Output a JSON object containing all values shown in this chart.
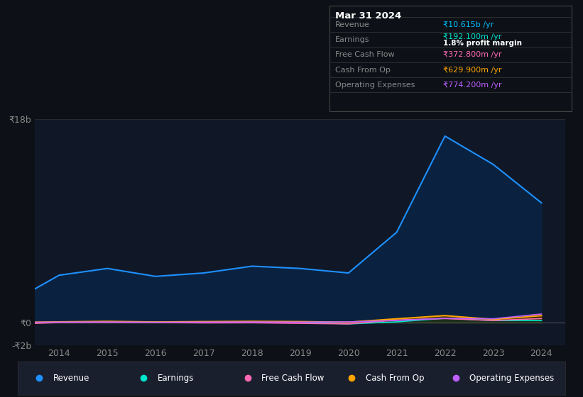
{
  "bg_color": "#0d1117",
  "ylim": [
    -2000000000,
    18000000000
  ],
  "revenue_color": "#1e90ff",
  "earnings_color": "#00e5cc",
  "fcf_color": "#ff69b4",
  "cashop_color": "#ffa500",
  "opex_color": "#bf5fff",
  "legend_items": [
    {
      "label": "Revenue",
      "color": "#1e90ff"
    },
    {
      "label": "Earnings",
      "color": "#00e5cc"
    },
    {
      "label": "Free Cash Flow",
      "color": "#ff69b4"
    },
    {
      "label": "Cash From Op",
      "color": "#ffa500"
    },
    {
      "label": "Operating Expenses",
      "color": "#bf5fff"
    }
  ],
  "revenue": [
    3000000000,
    4200000000,
    4800000000,
    4100000000,
    4400000000,
    5000000000,
    4800000000,
    4400000000,
    8000000000,
    16500000000,
    14000000000,
    10600000000
  ],
  "earnings": [
    20000000,
    50000000,
    80000000,
    40000000,
    60000000,
    60000000,
    40000000,
    -100000000,
    80000000,
    400000000,
    200000000,
    192000000
  ],
  "fcf": [
    -50000000,
    20000000,
    30000000,
    20000000,
    -10000000,
    0,
    -50000000,
    -100000000,
    250000000,
    370000000,
    200000000,
    373000000
  ],
  "cashop": [
    50000000,
    80000000,
    120000000,
    70000000,
    100000000,
    120000000,
    100000000,
    50000000,
    350000000,
    630000000,
    300000000,
    630000000
  ],
  "opex": [
    50000000,
    60000000,
    70000000,
    50000000,
    60000000,
    70000000,
    60000000,
    80000000,
    200000000,
    400000000,
    350000000,
    774000000
  ],
  "x_years": [
    2013.5,
    2014.0,
    2015.0,
    2016.0,
    2017.0,
    2018.0,
    2019.0,
    2020.0,
    2021.0,
    2022.0,
    2023.0,
    2024.0
  ],
  "info_title": "Mar 31 2024",
  "info_rows": [
    {
      "label": "Revenue",
      "value": "₹10.615b /yr",
      "value_color": "#00bfff",
      "sublabel": "",
      "subvalue": "",
      "subvalue_color": ""
    },
    {
      "label": "Earnings",
      "value": "₹192.100m /yr",
      "value_color": "#00e5cc",
      "sublabel": "",
      "subvalue": "1.8% profit margin",
      "subvalue_color": "#ffffff"
    },
    {
      "label": "Free Cash Flow",
      "value": "₹372.800m /yr",
      "value_color": "#ff69b4",
      "sublabel": "",
      "subvalue": "",
      "subvalue_color": ""
    },
    {
      "label": "Cash From Op",
      "value": "₹629.900m /yr",
      "value_color": "#ffa500",
      "sublabel": "",
      "subvalue": "",
      "subvalue_color": ""
    },
    {
      "label": "Operating Expenses",
      "value": "₹774.200m /yr",
      "value_color": "#bf5fff",
      "sublabel": "",
      "subvalue": "",
      "subvalue_color": ""
    }
  ]
}
